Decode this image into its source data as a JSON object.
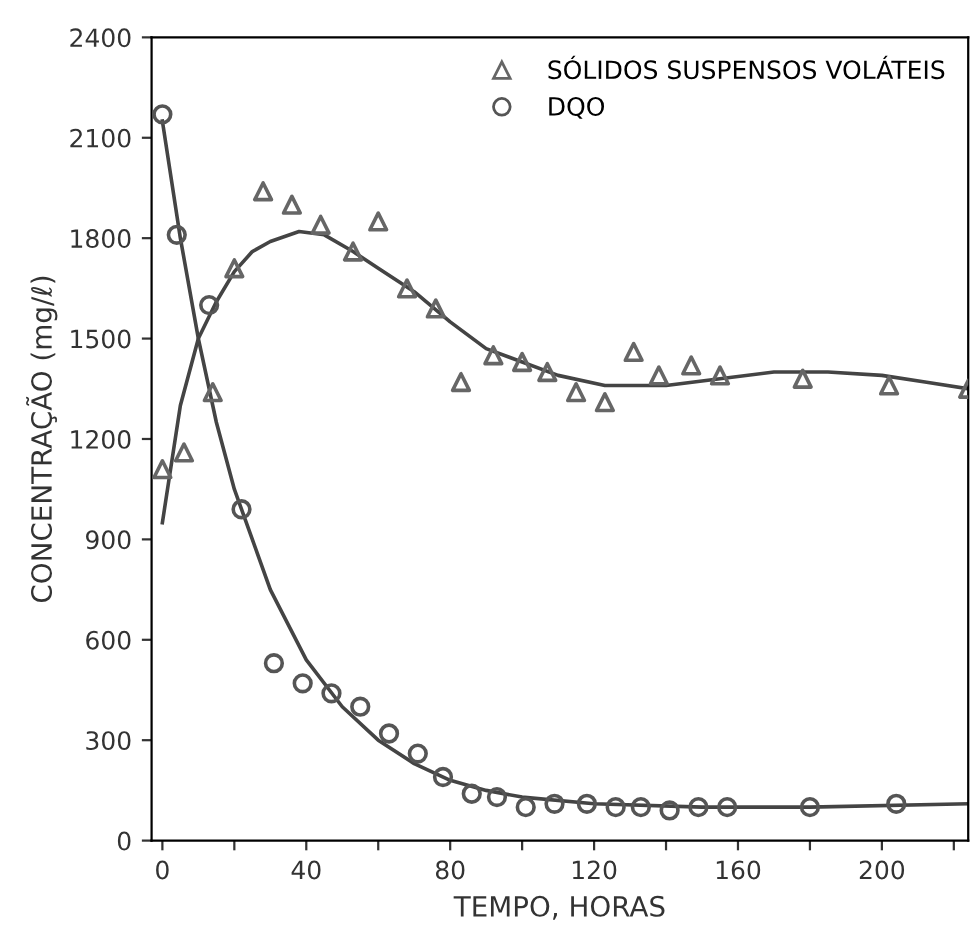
{
  "chart_data": {
    "type": "scatter",
    "xlabel": "TEMPO, HORAS",
    "ylabel": "CONCENTRAÇÃO (mg/ℓ)",
    "xlim": [
      -3,
      224
    ],
    "ylim": [
      0,
      2400
    ],
    "xticks": [
      0,
      {
        "value": 20,
        "label": null
      },
      40,
      {
        "value": 60,
        "label": null
      },
      80,
      {
        "value": 100,
        "label": null
      },
      120,
      {
        "value": 140,
        "label": null
      },
      160,
      {
        "value": 180,
        "label": null
      },
      200,
      {
        "value": 220,
        "label": null
      }
    ],
    "yticks": [
      0,
      300,
      600,
      900,
      1200,
      1500,
      1800,
      2100,
      2400
    ],
    "grid": false,
    "legend": "top right",
    "series": [
      {
        "name": "SÓLIDOS SUSPENSOS VOLÁTEIS",
        "marker": "triangle",
        "color": "#666666",
        "x": [
          0,
          6,
          14,
          20,
          28,
          36,
          44,
          53,
          60,
          68,
          76,
          83,
          92,
          100,
          107,
          115,
          123,
          131,
          138,
          147,
          155,
          178,
          202,
          224
        ],
        "values": [
          1110,
          1160,
          1340,
          1710,
          1940,
          1900,
          1840,
          1760,
          1850,
          1650,
          1590,
          1370,
          1450,
          1430,
          1400,
          1340,
          1310,
          1460,
          1390,
          1420,
          1390,
          1380,
          1360,
          1350
        ]
      },
      {
        "name": "DQO",
        "marker": "circle",
        "color": "#555555",
        "x": [
          0,
          4,
          13,
          22,
          31,
          39,
          47,
          55,
          63,
          71,
          78,
          86,
          93,
          101,
          109,
          118,
          126,
          133,
          141,
          149,
          157,
          180,
          204
        ],
        "values": [
          2170,
          1810,
          1600,
          990,
          530,
          470,
          440,
          400,
          320,
          260,
          190,
          140,
          130,
          100,
          110,
          110,
          100,
          100,
          90,
          100,
          100,
          100,
          110
        ]
      },
      {
        "type": "line",
        "color": "#444444",
        "x": [
          0,
          5,
          10,
          15,
          20,
          25,
          30,
          38,
          45,
          53,
          60,
          70,
          80,
          90,
          100,
          110,
          123,
          140,
          155,
          170,
          185,
          200,
          212,
          224
        ],
        "values": [
          950,
          1300,
          1500,
          1610,
          1700,
          1760,
          1790,
          1820,
          1810,
          1760,
          1710,
          1640,
          1550,
          1470,
          1430,
          1390,
          1360,
          1360,
          1380,
          1400,
          1400,
          1390,
          1370,
          1350
        ]
      },
      {
        "type": "line",
        "color": "#444444",
        "x": [
          0,
          5,
          10,
          15,
          20,
          30,
          40,
          50,
          60,
          70,
          80,
          90,
          100,
          120,
          150,
          180,
          224
        ],
        "values": [
          2150,
          1800,
          1500,
          1250,
          1050,
          750,
          540,
          400,
          300,
          230,
          180,
          150,
          130,
          110,
          100,
          100,
          110
        ]
      }
    ]
  }
}
